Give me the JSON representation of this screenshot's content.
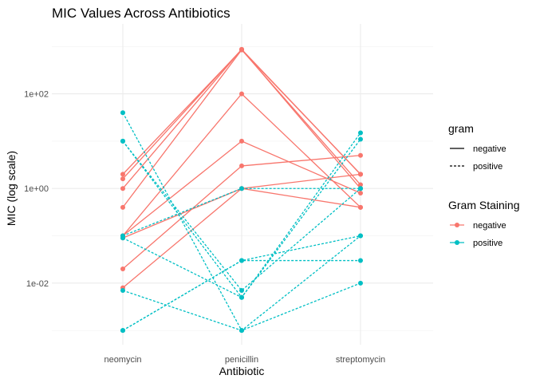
{
  "chart_data": {
    "type": "line",
    "title": "MIC Values Across Antibiotics",
    "xlabel": "Antibiotic",
    "ylabel": "MIC (log scale)",
    "y_scale": "log10",
    "ylim": [
      0.0005,
      3000
    ],
    "y_ticks": [
      0.01,
      1,
      100
    ],
    "y_tick_labels": [
      "1e-02",
      "1e+00",
      "1e+02"
    ],
    "categories": [
      "neomycin",
      "penicillin",
      "streptomycin"
    ],
    "grid": true,
    "colors": {
      "negative": "#F8766D",
      "positive": "#00BFC4"
    },
    "legends": [
      {
        "title": "gram",
        "entries": [
          {
            "label": "negative",
            "linetype": "solid"
          },
          {
            "label": "positive",
            "linetype": "dashed"
          }
        ]
      },
      {
        "title": "Gram Staining",
        "entries": [
          {
            "label": "negative",
            "color": "#F8766D"
          },
          {
            "label": "positive",
            "color": "#00BFC4"
          }
        ]
      }
    ],
    "series": [
      {
        "gram": "negative",
        "values": [
          1.6,
          870,
          1
        ]
      },
      {
        "gram": "negative",
        "values": [
          2,
          850,
          2
        ]
      },
      {
        "gram": "negative",
        "values": [
          0.4,
          850,
          1.2
        ]
      },
      {
        "gram": "negative",
        "values": [
          1,
          870,
          2
        ]
      },
      {
        "gram": "negative",
        "values": [
          0.1,
          100,
          0.4
        ]
      },
      {
        "gram": "negative",
        "values": [
          0.008,
          1,
          2
        ]
      },
      {
        "gram": "negative",
        "values": [
          0.1,
          10,
          0.8
        ]
      },
      {
        "gram": "negative",
        "values": [
          0.02,
          3,
          5
        ]
      },
      {
        "gram": "negative",
        "values": [
          0.09,
          1,
          0.4
        ]
      },
      {
        "gram": "positive",
        "values": [
          40,
          0.001,
          0.1
        ]
      },
      {
        "gram": "positive",
        "values": [
          10,
          0.007,
          1
        ]
      },
      {
        "gram": "positive",
        "values": [
          10,
          0.005,
          15
        ]
      },
      {
        "gram": "positive",
        "values": [
          0.1,
          1,
          1
        ]
      },
      {
        "gram": "positive",
        "values": [
          0.001,
          0.03,
          0.03
        ]
      },
      {
        "gram": "positive",
        "values": [
          0.007,
          0.001,
          0.01
        ]
      },
      {
        "gram": "positive",
        "values": [
          0.09,
          0.005,
          11
        ]
      },
      {
        "gram": "positive",
        "values": [
          0.001,
          0.03,
          0.1
        ]
      }
    ]
  }
}
